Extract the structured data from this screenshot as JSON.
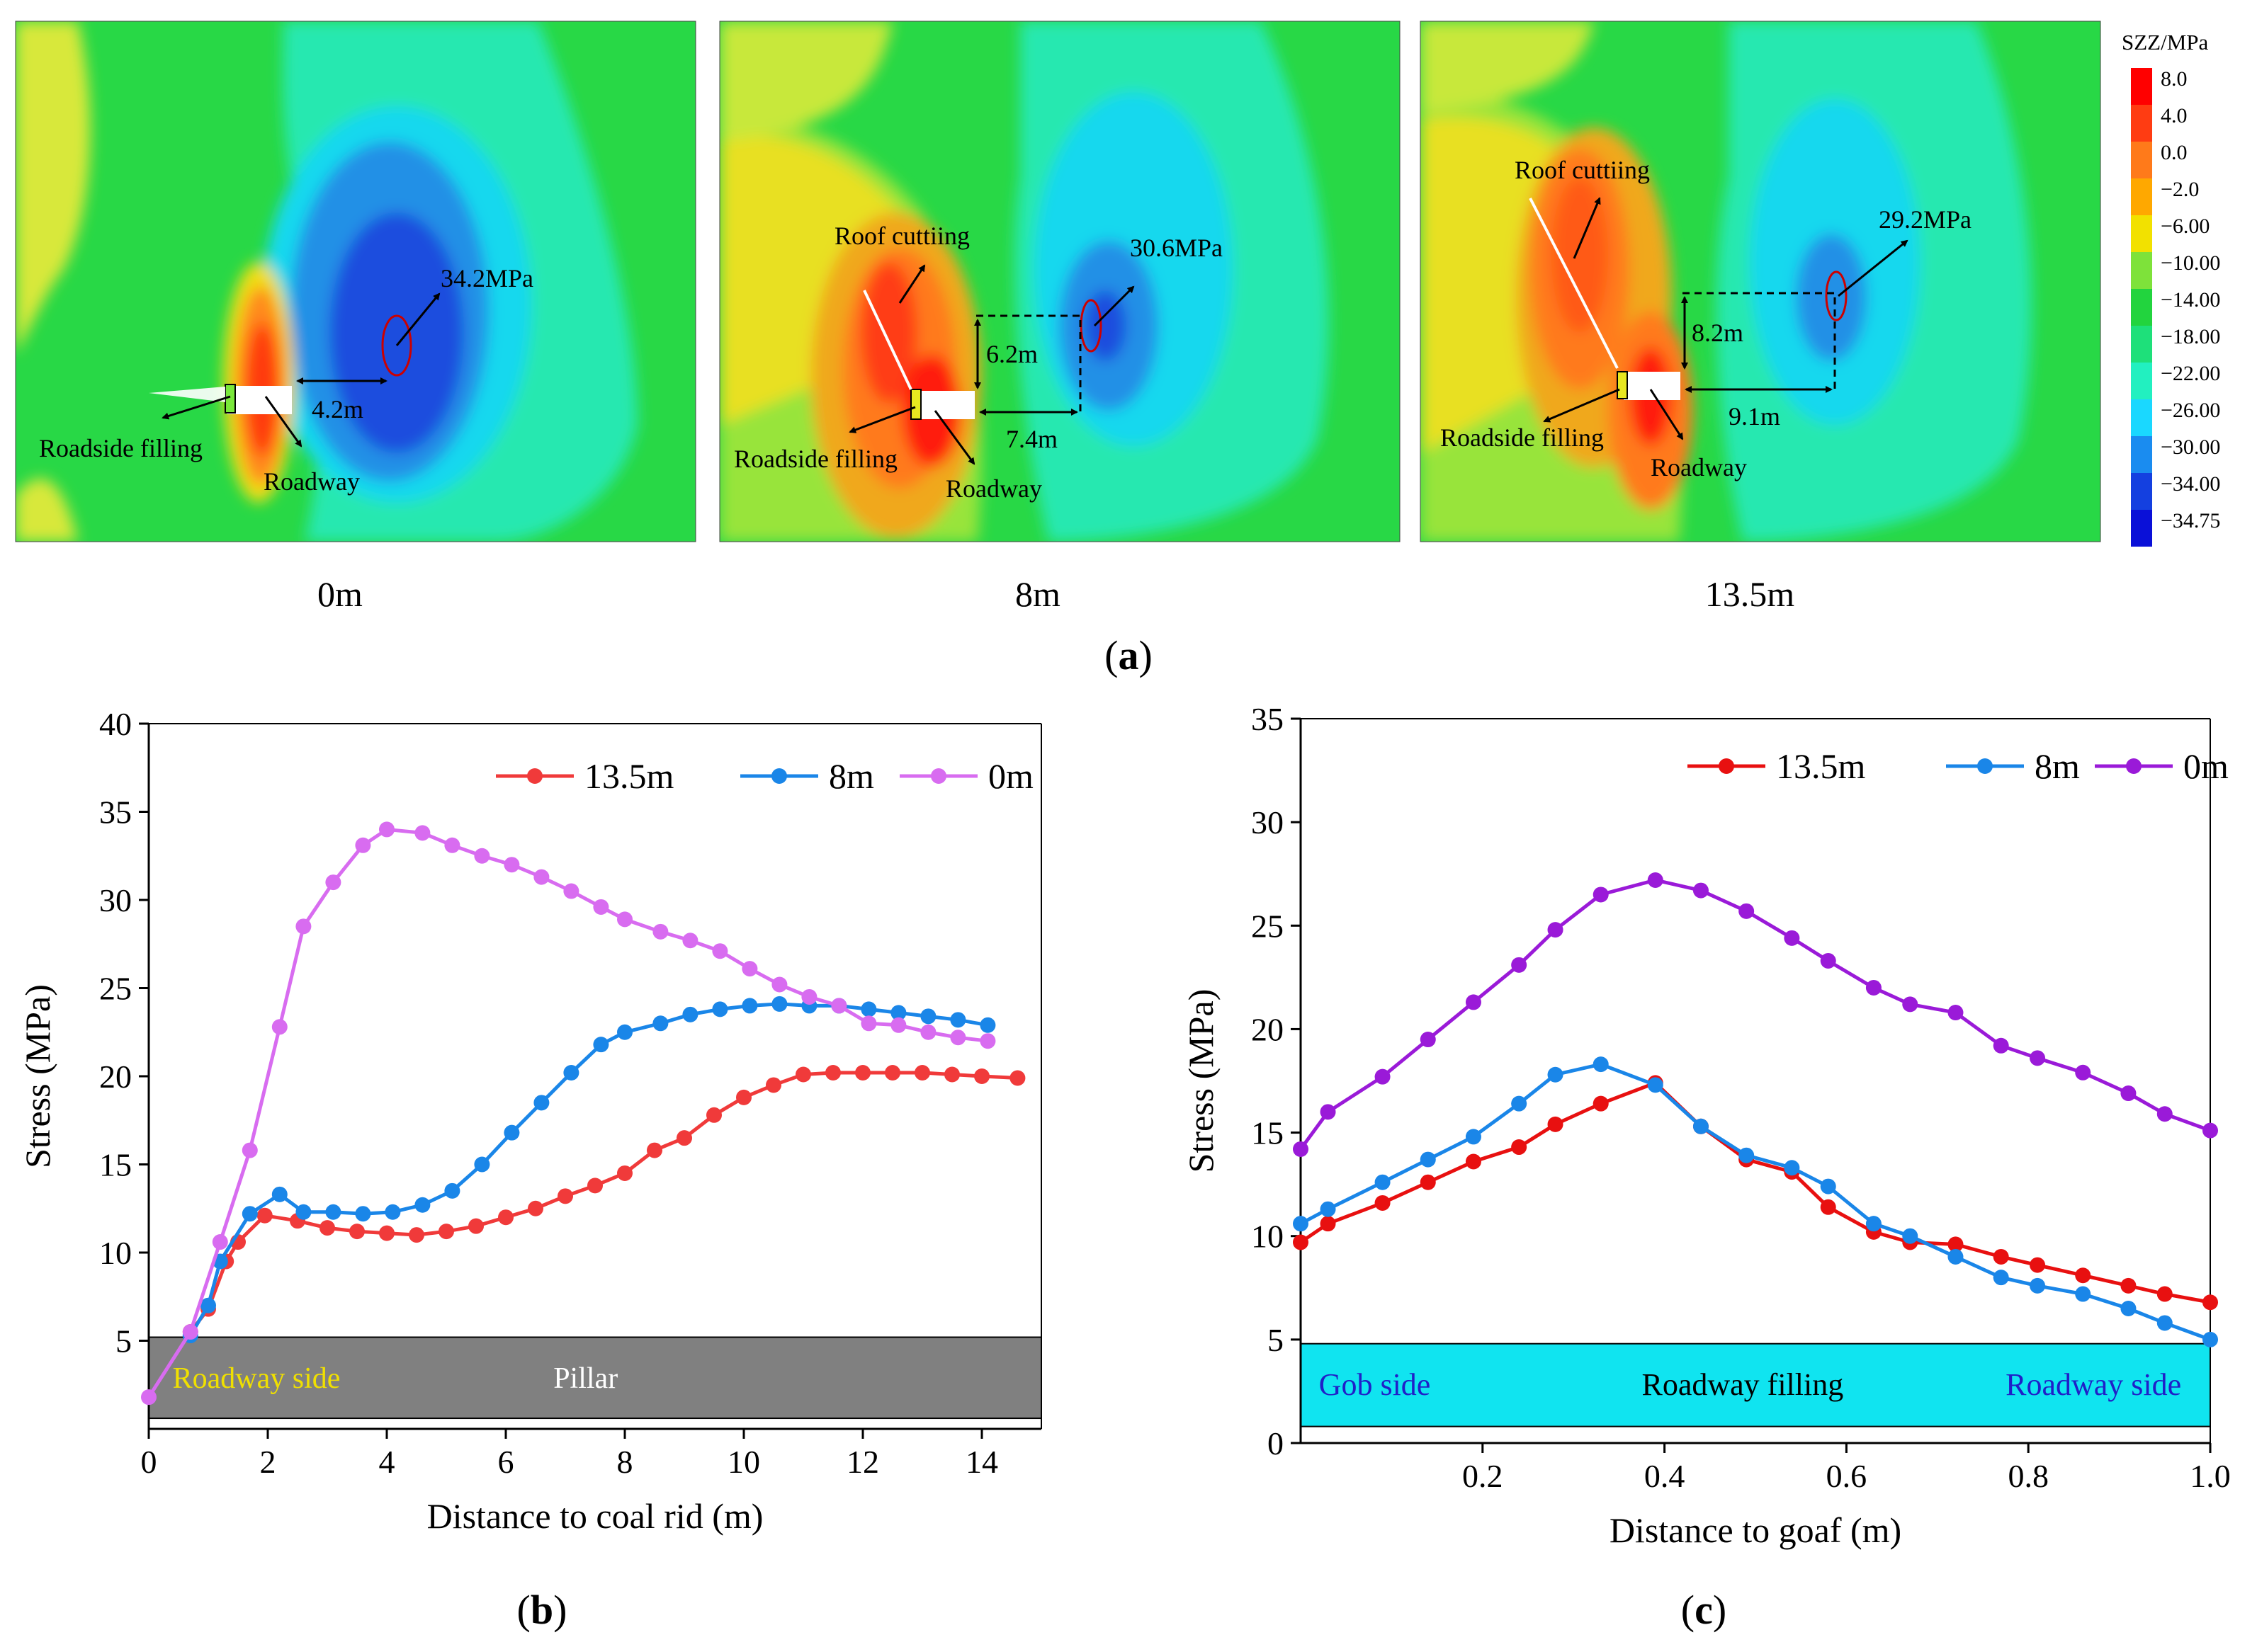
{
  "figure": {
    "panel_a": {
      "letter": "a",
      "colorbar": {
        "title": "SZZ/MPa",
        "ticks": [
          "8.0",
          "4.0",
          "0.0",
          "−2.0",
          "−6.00",
          "−10.00",
          "−14.00",
          "−18.00",
          "−22.00",
          "−26.00",
          "−30.00",
          "−34.00",
          "−34.75"
        ],
        "colors": [
          "#ff0000",
          "#ff3c12",
          "#ff7a1a",
          "#ffa800",
          "#f2e100",
          "#7ee23a",
          "#22d43e",
          "#1ee07a",
          "#22f0c0",
          "#1ad8ff",
          "#1a8cf0",
          "#1440e0",
          "#0a10d8"
        ]
      },
      "maps": [
        {
          "caption": "0m",
          "labels": {
            "peak": "34.2MPa",
            "distance": "4.2m",
            "filling": "Roadside filling",
            "roadway": "Roadway"
          }
        },
        {
          "caption": "8m",
          "labels": {
            "peak": "30.6MPa",
            "vertical": "6.2m",
            "horizontal": "7.4m",
            "roof": "Roof cuttiing",
            "filling": "Roadside filling",
            "roadway": "Roadway"
          }
        },
        {
          "caption": "13.5m",
          "labels": {
            "peak": "29.2MPa",
            "vertical": "8.2m",
            "horizontal": "9.1m",
            "roof": "Roof cuttiing",
            "filling": "Roadside filling",
            "roadway": "Roadway"
          }
        }
      ]
    },
    "panel_b": {
      "letter": "b"
    },
    "panel_c": {
      "letter": "c"
    }
  },
  "chart_data": [
    {
      "id": "b",
      "type": "line",
      "title": "",
      "xlabel": "Distance to coal rid (m)",
      "ylabel": "Stress (MPa)",
      "xlim": [
        0,
        15
      ],
      "ylim": [
        0,
        40
      ],
      "xticks": [
        0,
        2,
        4,
        6,
        8,
        10,
        12,
        14
      ],
      "yticks": [
        5,
        10,
        15,
        20,
        25,
        30,
        35,
        40
      ],
      "legend": "top-right",
      "band": {
        "from": 0.6,
        "to": 5.2,
        "color": "#808080",
        "labels": [
          {
            "text": "Roadway side",
            "x": 0.4,
            "color": "#f0e000"
          },
          {
            "text": "Pillar",
            "x": 6.8,
            "color": "#ffffff"
          }
        ]
      },
      "series": [
        {
          "name": "13.5m",
          "color": "#f03a3a",
          "x": [
            0.7,
            1.0,
            1.3,
            1.5,
            1.95,
            2.5,
            3.0,
            3.5,
            4.0,
            4.5,
            5.0,
            5.5,
            6.0,
            6.5,
            7.0,
            7.5,
            8.0,
            8.5,
            9.0,
            9.5,
            10.0,
            10.5,
            11.0,
            11.5,
            12.0,
            12.5,
            13.0,
            13.5,
            14.0,
            14.6
          ],
          "y": [
            5.5,
            6.8,
            9.5,
            10.6,
            12.1,
            11.8,
            11.4,
            11.2,
            11.1,
            11.0,
            11.2,
            11.5,
            12.0,
            12.5,
            13.2,
            13.8,
            14.5,
            15.8,
            16.5,
            17.8,
            18.8,
            19.5,
            20.1,
            20.2,
            20.2,
            20.2,
            20.2,
            20.1,
            20.0,
            19.9
          ]
        },
        {
          "name": "8m",
          "color": "#1a86e8",
          "x": [
            0.7,
            1.0,
            1.2,
            1.7,
            2.2,
            2.6,
            3.1,
            3.6,
            4.1,
            4.6,
            5.1,
            5.6,
            6.1,
            6.6,
            7.1,
            7.6,
            8.0,
            8.6,
            9.1,
            9.6,
            10.1,
            10.6,
            11.1,
            11.6,
            12.1,
            12.6,
            13.1,
            13.6,
            14.1
          ],
          "y": [
            5.3,
            7.0,
            9.5,
            12.2,
            13.3,
            12.3,
            12.3,
            12.2,
            12.3,
            12.7,
            13.5,
            15.0,
            16.8,
            18.5,
            20.2,
            21.8,
            22.5,
            23.0,
            23.5,
            23.8,
            24.0,
            24.1,
            24.0,
            24.0,
            23.8,
            23.6,
            23.4,
            23.2,
            22.9
          ]
        },
        {
          "name": "0m",
          "color": "#d86cf0",
          "x": [
            0.0,
            0.7,
            1.2,
            1.7,
            2.2,
            2.6,
            3.1,
            3.6,
            4.0,
            4.6,
            5.1,
            5.6,
            6.1,
            6.6,
            7.1,
            7.6,
            8.0,
            8.6,
            9.1,
            9.6,
            10.1,
            10.6,
            11.1,
            11.6,
            12.1,
            12.6,
            13.1,
            13.6,
            14.1
          ],
          "y": [
            1.8,
            5.5,
            10.6,
            15.8,
            22.8,
            28.5,
            31.0,
            33.1,
            34.0,
            33.8,
            33.1,
            32.5,
            32.0,
            31.3,
            30.5,
            29.6,
            28.9,
            28.2,
            27.7,
            27.1,
            26.1,
            25.2,
            24.5,
            24.0,
            23.0,
            22.9,
            22.5,
            22.2,
            22.0
          ]
        }
      ]
    },
    {
      "id": "c",
      "type": "line",
      "title": "",
      "xlabel": "Distance to goaf (m)",
      "ylabel": "Stress (MPa)",
      "xlim": [
        0,
        1.0
      ],
      "ylim": [
        0,
        35
      ],
      "xticks": [
        0.2,
        0.4,
        0.6,
        0.8,
        1.0
      ],
      "yticks": [
        0,
        5,
        10,
        15,
        20,
        25,
        30,
        35
      ],
      "legend": "top-right",
      "band": {
        "from": 0.8,
        "to": 4.8,
        "color": "#10e4f0",
        "labels": [
          {
            "text": "Gob side",
            "x": 0.02,
            "color": "#2020c8"
          },
          {
            "text": "Roadway filling",
            "x": 0.375,
            "color": "#000000"
          },
          {
            "text": "Roadway side",
            "x": 0.775,
            "color": "#2020c8"
          }
        ]
      },
      "series": [
        {
          "name": "13.5m",
          "color": "#e81010",
          "x": [
            0.0,
            0.03,
            0.09,
            0.14,
            0.19,
            0.24,
            0.28,
            0.33,
            0.39,
            0.44,
            0.49,
            0.54,
            0.58,
            0.63,
            0.67,
            0.72,
            0.77,
            0.81,
            0.86,
            0.91,
            0.95,
            1.0
          ],
          "y": [
            9.7,
            10.6,
            11.6,
            12.6,
            13.6,
            14.3,
            15.4,
            16.4,
            17.4,
            15.3,
            13.7,
            13.1,
            11.4,
            10.2,
            9.7,
            9.6,
            9.0,
            8.6,
            8.1,
            7.6,
            7.2,
            6.8
          ]
        },
        {
          "name": "8m",
          "color": "#1a86e8",
          "x": [
            0.0,
            0.03,
            0.09,
            0.14,
            0.19,
            0.24,
            0.28,
            0.33,
            0.39,
            0.44,
            0.49,
            0.54,
            0.58,
            0.63,
            0.67,
            0.72,
            0.77,
            0.81,
            0.86,
            0.91,
            0.95,
            1.0
          ],
          "y": [
            10.6,
            11.3,
            12.6,
            13.7,
            14.8,
            16.4,
            17.8,
            18.3,
            17.3,
            15.3,
            13.9,
            13.3,
            12.4,
            10.6,
            10.0,
            9.0,
            8.0,
            7.6,
            7.2,
            6.5,
            5.8,
            5.0
          ]
        },
        {
          "name": "0m",
          "color": "#9a1ad8",
          "x": [
            0.0,
            0.03,
            0.09,
            0.14,
            0.19,
            0.24,
            0.28,
            0.33,
            0.39,
            0.44,
            0.49,
            0.54,
            0.58,
            0.63,
            0.67,
            0.72,
            0.77,
            0.81,
            0.86,
            0.91,
            0.95,
            1.0
          ],
          "y": [
            14.2,
            16.0,
            17.7,
            19.5,
            21.3,
            23.1,
            24.8,
            26.5,
            27.2,
            26.7,
            25.7,
            24.4,
            23.3,
            22.0,
            21.2,
            20.8,
            19.2,
            18.6,
            17.9,
            16.9,
            15.9,
            15.1
          ]
        }
      ]
    }
  ]
}
